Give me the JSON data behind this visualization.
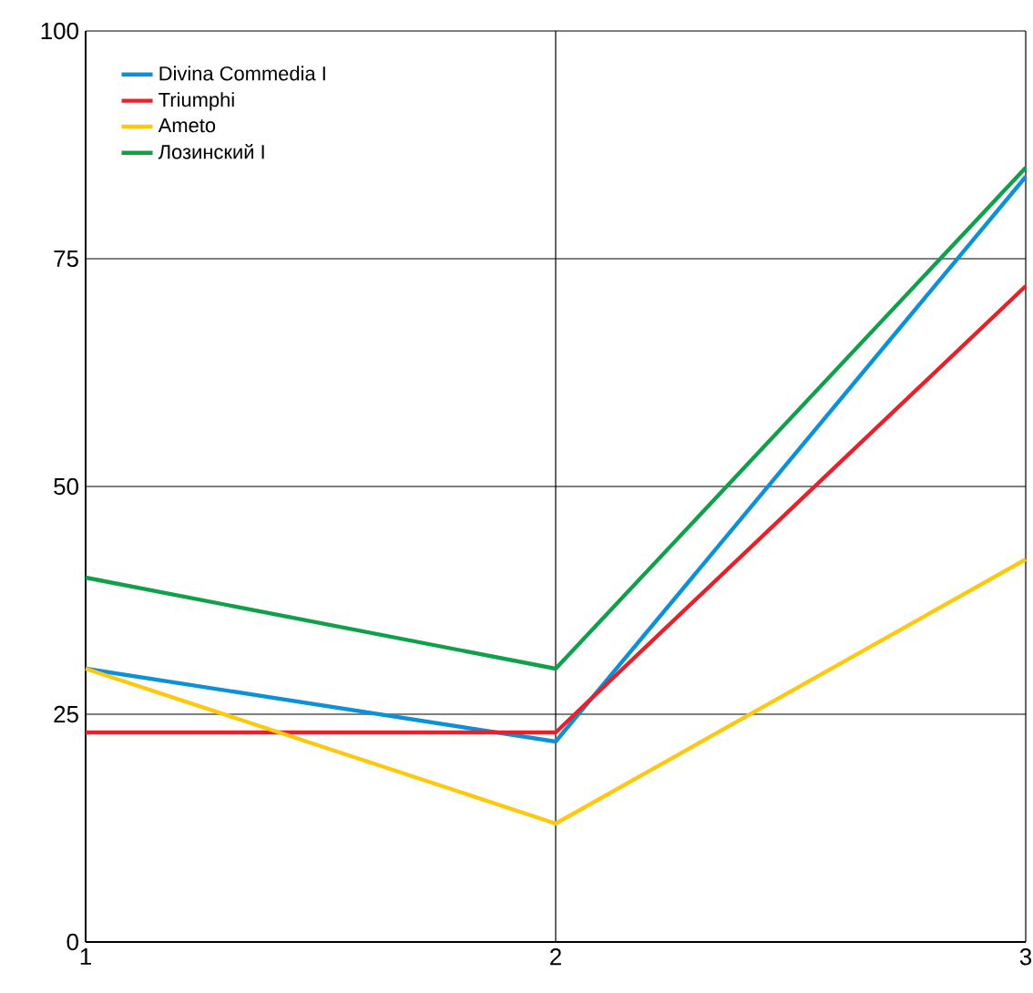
{
  "chart_data": {
    "type": "line",
    "x": [
      1,
      2,
      3
    ],
    "series": [
      {
        "name": "Divina Commedia I",
        "color": "#0a91d8",
        "values": [
          30,
          22,
          84
        ]
      },
      {
        "name": "Triumphi",
        "color": "#e8202a",
        "values": [
          23,
          23,
          72
        ]
      },
      {
        "name": "Ameto",
        "color": "#fdc80d",
        "values": [
          30,
          13,
          42
        ]
      },
      {
        "name": "Лозинский I",
        "color": "#10a04a",
        "values": [
          40,
          30,
          85
        ]
      }
    ],
    "xlim": [
      1,
      3
    ],
    "xticks": [
      1,
      2,
      3
    ],
    "ylim": [
      0,
      100
    ],
    "yticks": [
      0,
      25,
      50,
      75,
      100
    ],
    "grid": true,
    "legend": "top left",
    "marker": "none",
    "line_style": "solid"
  }
}
